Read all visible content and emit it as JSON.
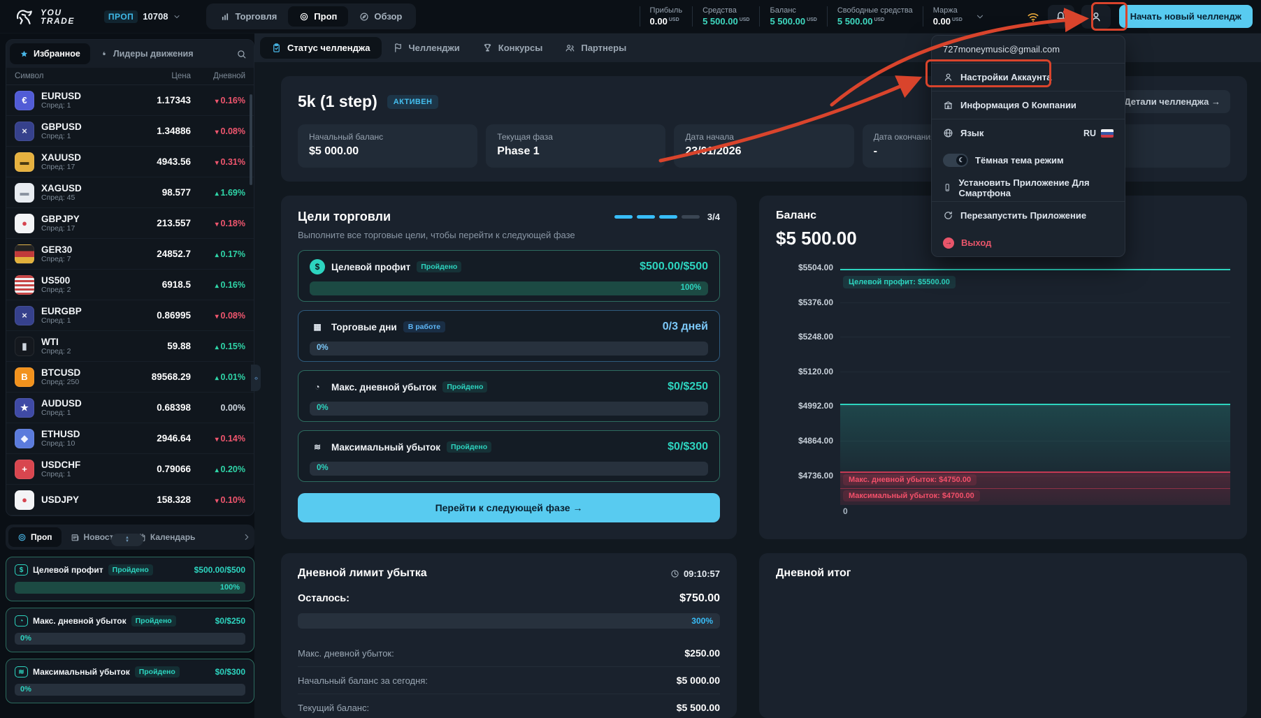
{
  "accent_colors": {
    "teal": "#2dd4bf",
    "cyan_button": "#58cbf0",
    "blue_badge": "#45c0f0",
    "red": "#f0566e",
    "green": "#2fd5a8",
    "annotation_red": "#d9442c"
  },
  "header": {
    "brand_line1": "YOU",
    "brand_line2": "TRADE",
    "account": {
      "type": "ПРОП",
      "id": "10708"
    },
    "nav_tabs": {
      "trade": "Торговля",
      "prop": "Проп",
      "overview": "Обзор"
    },
    "stats": [
      {
        "label": "Прибыль",
        "value": "0.00",
        "unit": "USD",
        "tone": "white"
      },
      {
        "label": "Средства",
        "value": "5 500.00",
        "unit": "USD",
        "tone": "teal"
      },
      {
        "label": "Баланс",
        "value": "5 500.00",
        "unit": "USD",
        "tone": "teal"
      },
      {
        "label": "Свободные средства",
        "value": "5 500.00",
        "unit": "USD",
        "tone": "teal"
      },
      {
        "label": "Маржа",
        "value": "0.00",
        "unit": "USD",
        "tone": "white"
      }
    ],
    "cta_button": "Начать новый челлендж"
  },
  "user_menu": {
    "email": "727moneymusic@gmail.com",
    "settings": "Настройки Аккаунта",
    "company": "Информация О Компании",
    "language": "Язык",
    "language_value": "RU",
    "theme": "Тёмная тема режим",
    "install": "Установить Приложение Для Смартфона",
    "restart": "Перезапустить Приложение",
    "logout": "Выход"
  },
  "sidebar": {
    "tabs": {
      "favorites": "Избранное",
      "movers": "Лидеры движения"
    },
    "columns": {
      "symbol": "Символ",
      "price": "Цена",
      "daily": "Дневной"
    },
    "symbols": [
      {
        "sym": "EURUSD",
        "spread": "Спред: 1",
        "price": "1.17343",
        "change": "0.16%",
        "dir": "down",
        "ibg": "#515cd6",
        "ifg": "#ffffff",
        "g": "€"
      },
      {
        "sym": "GBPUSD",
        "spread": "Спред: 1",
        "price": "1.34886",
        "change": "0.08%",
        "dir": "down",
        "ibg": "#36418c",
        "ifg": "#e8eaf0",
        "g": "×"
      },
      {
        "sym": "XAUUSD",
        "spread": "Спред: 17",
        "price": "4943.56",
        "change": "0.31%",
        "dir": "down",
        "ibg": "#e6b13f",
        "ifg": "#4a3a12",
        "g": "▬"
      },
      {
        "sym": "XAGUSD",
        "spread": "Спред: 45",
        "price": "98.577",
        "change": "1.69%",
        "dir": "up",
        "ibg": "#e8ecf1",
        "ifg": "#8a93a0",
        "g": "▬"
      },
      {
        "sym": "GBPJPY",
        "spread": "Спред: 17",
        "price": "213.557",
        "change": "0.18%",
        "dir": "down",
        "ibg": "#f3f4f6",
        "ifg": "#d64550",
        "g": "●"
      },
      {
        "sym": "GER30",
        "spread": "Спред: 7",
        "price": "24852.7",
        "change": "0.17%",
        "dir": "up",
        "ibg": "linear-gradient(180deg,#222222 0 33%,#c13a3a 33% 66%,#e2b13c 66% 100%)",
        "ifg": "#ffffff",
        "g": ""
      },
      {
        "sym": "US500",
        "spread": "Спред: 2",
        "price": "6918.5",
        "change": "0.16%",
        "dir": "up",
        "ibg": "repeating-linear-gradient(180deg,#c74545 0 3px,#f2f4f6 3px 6px)",
        "ifg": "#2c3e94",
        "g": ""
      },
      {
        "sym": "EURGBP",
        "spread": "Спред: 1",
        "price": "0.86995",
        "change": "0.08%",
        "dir": "down",
        "ibg": "#36418c",
        "ifg": "#e8eaf0",
        "g": "×"
      },
      {
        "sym": "WTI",
        "spread": "Спред: 2",
        "price": "59.88",
        "change": "0.15%",
        "dir": "up",
        "ibg": "#14181e",
        "ifg": "#cfd6df",
        "g": "▮"
      },
      {
        "sym": "BTCUSD",
        "spread": "Спред: 250",
        "price": "89568.29",
        "change": "0.01%",
        "dir": "up",
        "ibg": "#f2921d",
        "ifg": "#ffffff",
        "g": "B"
      },
      {
        "sym": "AUDUSD",
        "spread": "Спред: 1",
        "price": "0.68398",
        "change": "0.00%",
        "dir": "flat",
        "ibg": "#3f4aa5",
        "ifg": "#ffffff",
        "g": "★"
      },
      {
        "sym": "ETHUSD",
        "spread": "Спред: 10",
        "price": "2946.64",
        "change": "0.14%",
        "dir": "down",
        "ibg": "#5b7bdc",
        "ifg": "#eef2ff",
        "g": "◆"
      },
      {
        "sym": "USDCHF",
        "spread": "Спред: 1",
        "price": "0.79066",
        "change": "0.20%",
        "dir": "up",
        "ibg": "#d8464f",
        "ifg": "#ffffff",
        "g": "+"
      },
      {
        "sym": "USDJPY",
        "spread": "",
        "price": "158.328",
        "change": "0.10%",
        "dir": "down",
        "ibg": "#f3f4f6",
        "ifg": "#d64550",
        "g": "●"
      }
    ],
    "bottom_tabs": {
      "prop": "Проп",
      "news": "Новости",
      "calendar": "Календарь"
    },
    "goals": [
      {
        "g": "$",
        "title": "Целевой профит",
        "badge": "Пройдено",
        "value": "$500.00/$500",
        "pct": "100%",
        "fill": "100%",
        "side": "right"
      },
      {
        "g": "◔",
        "title": "Макс. дневной убыток",
        "badge": "Пройдено",
        "value": "$0/$250",
        "pct": "0%",
        "fill": "0%",
        "side": "left"
      },
      {
        "g": "≋",
        "title": "Максимальный убыток",
        "badge": "Пройдено",
        "value": "$0/$300",
        "pct": "0%",
        "fill": "0%",
        "side": "left"
      }
    ]
  },
  "main_tabs": {
    "status": "Статус челленджа",
    "challenges": "Челленджи",
    "contests": "Конкурсы",
    "partners": "Партнеры"
  },
  "challenge": {
    "title": "5k (1 step)",
    "status_badge": "АКТИВЕН",
    "details_button": "Детали челленджа →",
    "tiles": [
      {
        "label": "Начальный баланс",
        "value": "$5 000.00"
      },
      {
        "label": "Текущая фаза",
        "value": "Phase 1"
      },
      {
        "label": "Дата начала",
        "value": "23/01/2026"
      },
      {
        "label": "Дата окончания",
        "value": "-"
      },
      {
        "label": "",
        "value": ""
      }
    ]
  },
  "goals_section": {
    "title": "Цели торговли",
    "subtitle": "Выполните все торговые цели, чтобы перейти к следующей фазе",
    "progress_count": "3/4",
    "cta": "Перейти к следующей фазе →",
    "items": [
      {
        "g": "$",
        "ibg": "#2dd4bf",
        "ifg": "#0c1419",
        "title": "Целевой профит",
        "badge": "Пройдено",
        "btype": "badge-done",
        "value": "$500.00/$500",
        "vclass": "teal",
        "accent": "",
        "pct": "100%",
        "fill": "100%",
        "side": "right"
      },
      {
        "g": "▦",
        "ibg": "transparent",
        "ifg": "#dfe6ee",
        "title": "Торговые дни",
        "badge": "В работе",
        "btype": "badge-progress",
        "value": "0/3 дней",
        "vclass": "blue",
        "accent": "blue",
        "pct": "0%",
        "fill": "0%",
        "side": "left"
      },
      {
        "g": "◔",
        "ibg": "transparent",
        "ifg": "#dfe6ee",
        "title": "Макс. дневной убыток",
        "badge": "Пройдено",
        "btype": "badge-done",
        "value": "$0/$250",
        "vclass": "teal",
        "accent": "",
        "pct": "0%",
        "fill": "0%",
        "side": "left"
      },
      {
        "g": "≋",
        "ibg": "transparent",
        "ifg": "#dfe6ee",
        "title": "Максимальный убыток",
        "badge": "Пройдено",
        "btype": "badge-done",
        "value": "$0/$300",
        "vclass": "teal",
        "accent": "",
        "pct": "0%",
        "fill": "0%",
        "side": "left"
      }
    ]
  },
  "chart_data": {
    "type": "line",
    "title": "Баланс",
    "current_value": "$5 500.00",
    "y_ticks": [
      {
        "label": "$5504.00"
      },
      {
        "label": "$5376.00"
      },
      {
        "label": "$5248.00"
      },
      {
        "label": "$5120.00"
      },
      {
        "label": "$4992.00"
      },
      {
        "label": "$4864.00"
      },
      {
        "label": "$4736.00"
      }
    ],
    "ylim": [
      4650,
      5550
    ],
    "x_origin_label": "0",
    "series": [
      {
        "name": "Баланс",
        "values": [
          5000
        ]
      }
    ],
    "annotations": [
      {
        "label": "Целевой профит: $5500.00",
        "value": 5500,
        "color": "#2dd4bf"
      },
      {
        "label": "Макс. дневной убыток: $4750.00",
        "value": 4750,
        "color": "#f4506a"
      },
      {
        "label": "Максимальный убыток: $4700.00",
        "value": 4700,
        "color": "#f4506a"
      }
    ],
    "legend": "none",
    "grid": true
  },
  "daily_limit": {
    "title": "Дневной лимит убытка",
    "timer": "09:10:57",
    "remaining_label": "Осталось:",
    "remaining_value": "$750.00",
    "pct": "300%",
    "rows": [
      {
        "label": "Макс. дневной убыток:",
        "value": "$250.00"
      },
      {
        "label": "Начальный баланс за сегодня:",
        "value": "$5 000.00"
      },
      {
        "label": "Текущий баланс:",
        "value": "$5 500.00"
      }
    ]
  },
  "daily_result": {
    "title": "Дневной итог"
  }
}
